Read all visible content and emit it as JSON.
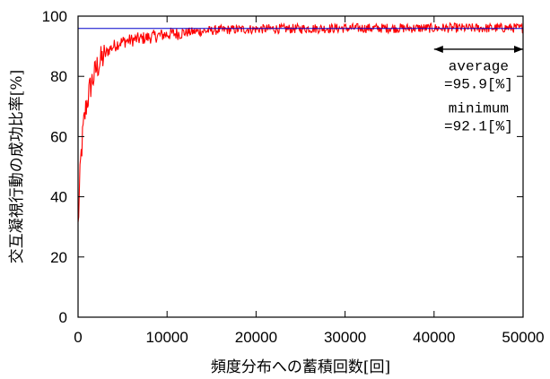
{
  "chart_data": {
    "type": "line",
    "title": "",
    "xlabel": "頻度分布への蓄積回数[回]",
    "ylabel": "交互凝視行動の成功比率[%]",
    "xlim": [
      0,
      50000
    ],
    "ylim": [
      0,
      100
    ],
    "x_ticks": [
      "0",
      "10000",
      "20000",
      "30000",
      "40000",
      "50000"
    ],
    "y_ticks": [
      "0",
      "20",
      "40",
      "60",
      "80",
      "100"
    ],
    "grid": false,
    "series": [
      {
        "color": "#ff0000",
        "x": [
          0,
          300,
          600,
          900,
          1200,
          1500,
          1800,
          2100,
          2500,
          3000,
          3500,
          4000,
          4500,
          5000,
          6000,
          7000,
          8000,
          9000,
          10000,
          11000,
          12000,
          13000,
          14000,
          15000,
          16000,
          18000,
          20000,
          22000,
          24000,
          26000,
          28000,
          30000,
          32000,
          34000,
          36000,
          38000,
          40000,
          42000,
          44000,
          46000,
          48000,
          50000
        ],
        "values": [
          30,
          52,
          63,
          70,
          74,
          78,
          80,
          83,
          85,
          87,
          89,
          90,
          91,
          91.5,
          92,
          92.5,
          93,
          93.5,
          94,
          94.2,
          94.5,
          94.8,
          95,
          95.2,
          95.4,
          95.6,
          95.7,
          95.8,
          95.8,
          95.9,
          95.9,
          96,
          96,
          96,
          96,
          96,
          96,
          96.1,
          96,
          96,
          96.1,
          96
        ]
      },
      {
        "color": "#0000cc",
        "x": [
          0,
          50000
        ],
        "values": [
          95.9,
          95.9
        ]
      }
    ],
    "annotations": [
      {
        "text": "average",
        "x": 45000,
        "y": 82
      },
      {
        "text": "=95.9[%]",
        "x": 45000,
        "y": 76
      },
      {
        "text": "minimum",
        "x": 45000,
        "y": 68
      },
      {
        "text": "=92.1[%]",
        "x": 45000,
        "y": 62
      }
    ],
    "arrow": {
      "x_from": 40000,
      "x_to": 50000,
      "y": 89
    }
  }
}
